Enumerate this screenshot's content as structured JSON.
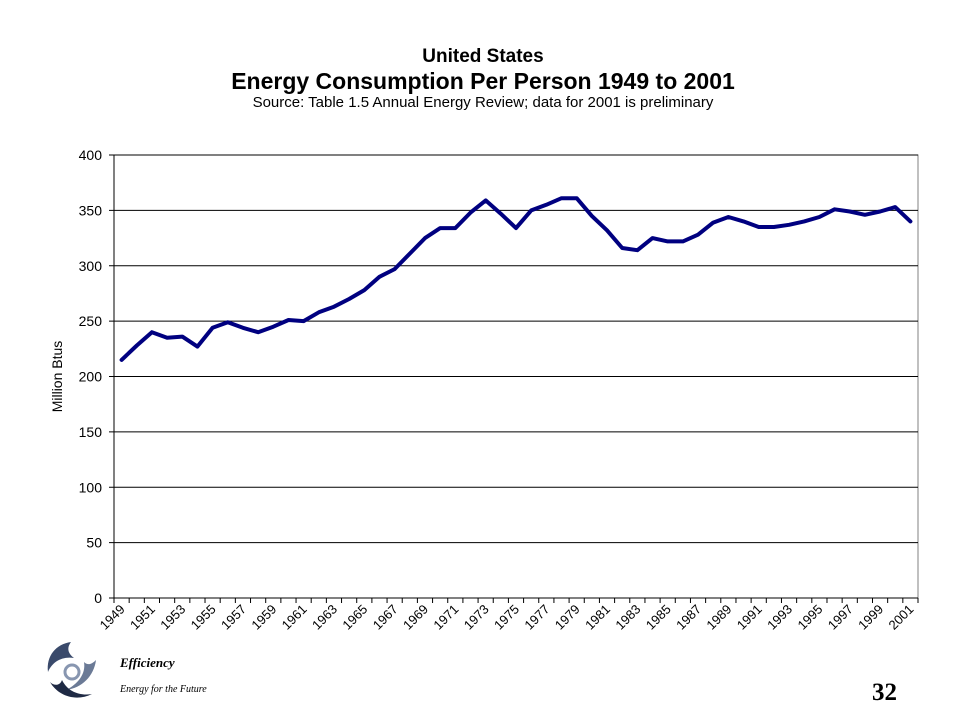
{
  "chart_data": {
    "type": "line",
    "title": "United States",
    "subtitle": "Energy Consumption Per Person 1949 to 2001",
    "source_note": "Source: Table 1.5 Annual Energy Review; data for 2001 is preliminary",
    "xlabel": "",
    "ylabel": "Million Btus",
    "ylim": [
      0,
      400
    ],
    "yticks": [
      0,
      50,
      100,
      150,
      200,
      250,
      300,
      350,
      400
    ],
    "xtick_labels": [
      "1949",
      "1951",
      "1953",
      "1955",
      "1957",
      "1959",
      "1961",
      "1963",
      "1965",
      "1967",
      "1969",
      "1971",
      "1973",
      "1975",
      "1977",
      "1979",
      "1981",
      "1983",
      "1985",
      "1987",
      "1989",
      "1991",
      "1993",
      "1995",
      "1997",
      "1999",
      "2001"
    ],
    "grid": true,
    "legend": "none",
    "line_color": "#000080",
    "x": [
      1949,
      1950,
      1951,
      1952,
      1953,
      1954,
      1955,
      1956,
      1957,
      1958,
      1959,
      1960,
      1961,
      1962,
      1963,
      1964,
      1965,
      1966,
      1967,
      1968,
      1969,
      1970,
      1971,
      1972,
      1973,
      1974,
      1975,
      1976,
      1977,
      1978,
      1979,
      1980,
      1981,
      1982,
      1983,
      1984,
      1985,
      1986,
      1987,
      1988,
      1989,
      1990,
      1991,
      1992,
      1993,
      1994,
      1995,
      1996,
      1997,
      1998,
      1999,
      2000,
      2001
    ],
    "series": [
      {
        "values": [
          215,
          228,
          240,
          235,
          236,
          227,
          244,
          249,
          244,
          240,
          245,
          251,
          250,
          258,
          263,
          270,
          278,
          290,
          297,
          311,
          325,
          334,
          334,
          348,
          359,
          347,
          334,
          350,
          355,
          361,
          361,
          345,
          332,
          316,
          314,
          325,
          322,
          322,
          328,
          339,
          344,
          340,
          335,
          335,
          337,
          340,
          344,
          351,
          349,
          346,
          349,
          353,
          340
        ]
      }
    ]
  },
  "footer": {
    "logo_word": "Efficiency",
    "tagline": "Energy for the Future",
    "page_number": "32"
  }
}
